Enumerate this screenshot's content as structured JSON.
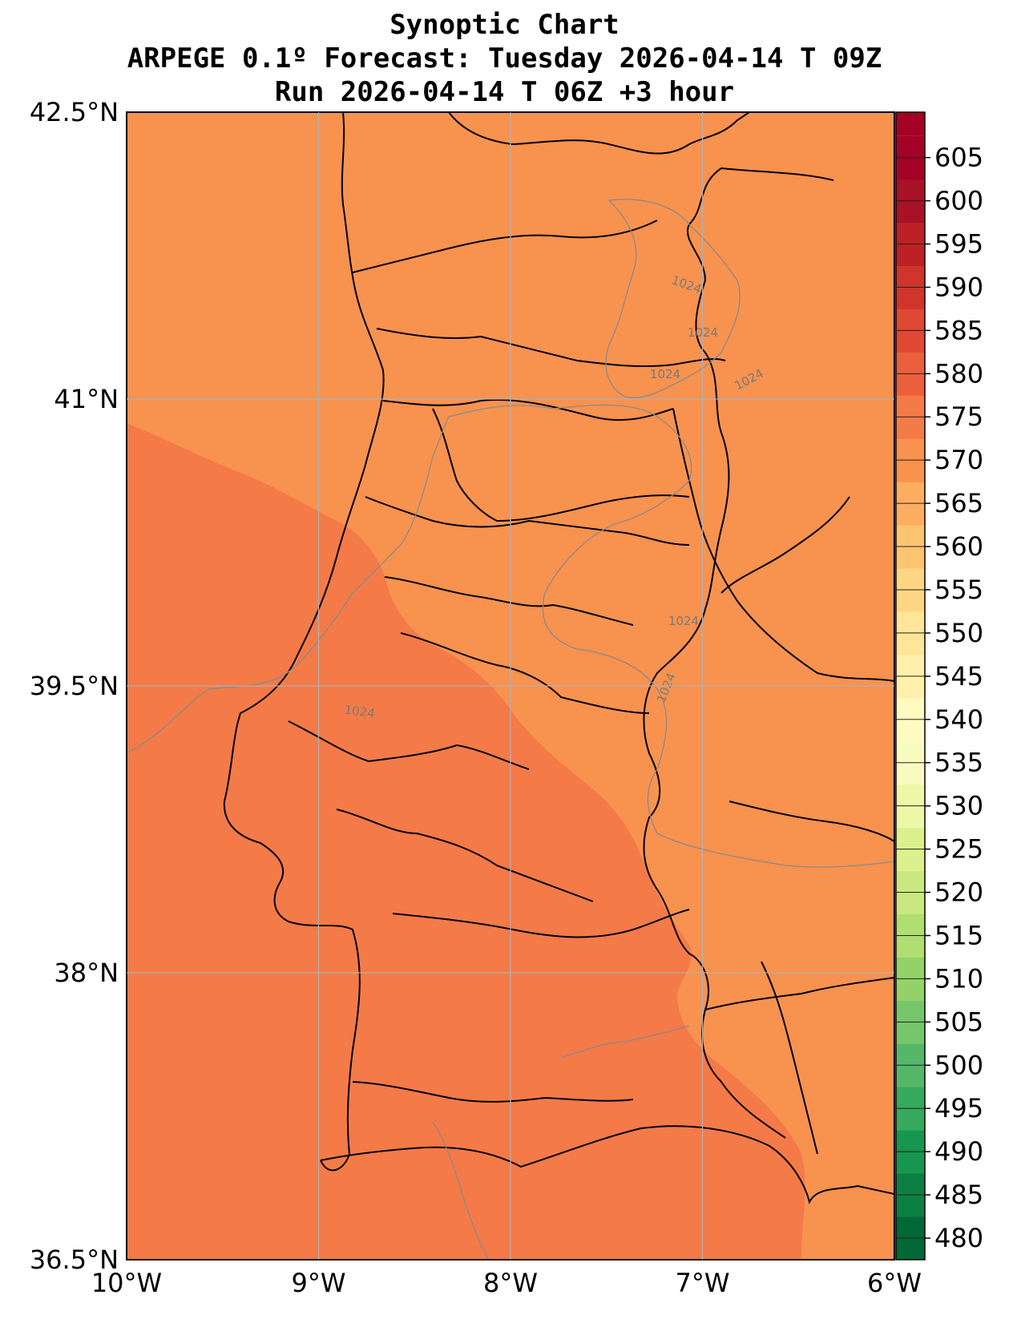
{
  "title": {
    "line1": "Synoptic Chart",
    "line2": "ARPEGE 0.1º Forecast: Tuesday 2026-04-14 T 09Z",
    "line3": "Run 2026-04-14 T 06Z +3 hour"
  },
  "map": {
    "lon_range": [
      -10,
      -6
    ],
    "lat_range": [
      36.5,
      42.5
    ],
    "lon_ticks": [
      {
        "value": -10,
        "label": "10°W"
      },
      {
        "value": -9,
        "label": "9°W"
      },
      {
        "value": -8,
        "label": "8°W"
      },
      {
        "value": -7,
        "label": "7°W"
      },
      {
        "value": -6,
        "label": "6°W"
      }
    ],
    "lat_ticks": [
      {
        "value": 42.5,
        "label": "42.5°N"
      },
      {
        "value": 41,
        "label": "41°N"
      },
      {
        "value": 39.5,
        "label": "39.5°N"
      },
      {
        "value": 38,
        "label": "38°N"
      },
      {
        "value": 36.5,
        "label": "36.5°N"
      }
    ],
    "grid": true,
    "fill_colors": {
      "north_band": "#f8924f",
      "south_band": "#f47a48"
    },
    "isobar_label": "1024",
    "isobar_labels": [
      "1024",
      "1024",
      "1024",
      "1024",
      "1024",
      "1024",
      "1024"
    ]
  },
  "colorbar": {
    "levels": [
      480,
      485,
      490,
      495,
      500,
      505,
      510,
      515,
      520,
      525,
      530,
      535,
      540,
      545,
      550,
      555,
      560,
      565,
      570,
      575,
      580,
      585,
      590,
      595,
      600,
      605
    ],
    "labels": [
      "480",
      "485",
      "490",
      "495",
      "500",
      "505",
      "510",
      "515",
      "520",
      "525",
      "530",
      "535",
      "540",
      "545",
      "550",
      "555",
      "560",
      "565",
      "570",
      "575",
      "580",
      "585",
      "590",
      "595",
      "600",
      "605"
    ],
    "colors": [
      "#006837",
      "#0c7f43",
      "#17964f",
      "#36a95c",
      "#55b869",
      "#75c66a",
      "#93d268",
      "#b0de70",
      "#c9e880",
      "#dcf18e",
      "#ecf7a7",
      "#f9fcbf",
      "#fffac0",
      "#fff0ab",
      "#fee597",
      "#fed683",
      "#fdc472",
      "#fdae61",
      "#f8924f",
      "#f47a48",
      "#eb5f3d",
      "#df4833",
      "#d0342a",
      "#bd2025",
      "#a91126",
      "#a50026"
    ]
  }
}
